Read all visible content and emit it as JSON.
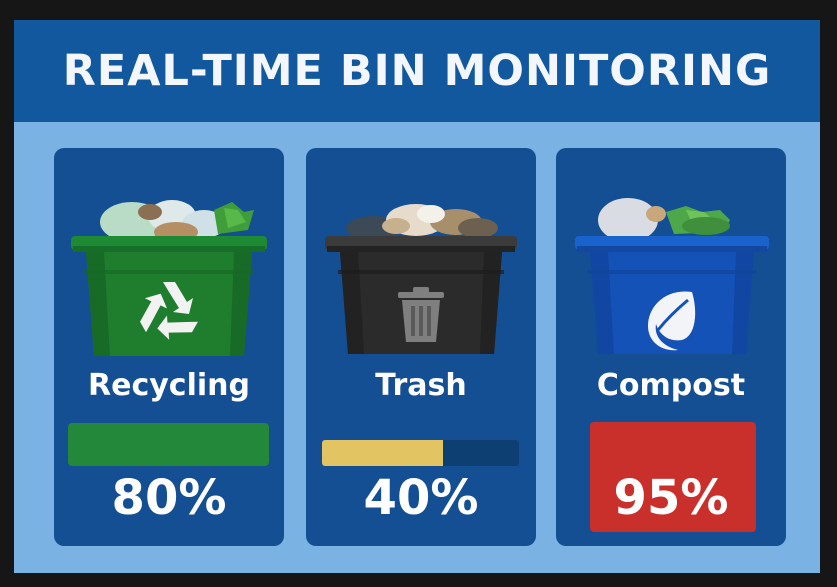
{
  "header": {
    "title": "REAL-TIME BIN MONITORING"
  },
  "bins": [
    {
      "name": "Recycling",
      "fill_percent": 80,
      "percent_label": "80%",
      "color": "#1f7d2e",
      "bar_color": "#24883a",
      "icon": "recycle-icon"
    },
    {
      "name": "Trash",
      "fill_percent": 40,
      "percent_label": "40%",
      "color": "#2b2b2b",
      "bar_color": "#e3c462",
      "track_color": "#0e3f73",
      "icon": "trash-can-icon"
    },
    {
      "name": "Compost",
      "fill_percent": 95,
      "percent_label": "95%",
      "color": "#1452b8",
      "bar_color": "#c9302c",
      "icon": "leaf-icon"
    }
  ]
}
